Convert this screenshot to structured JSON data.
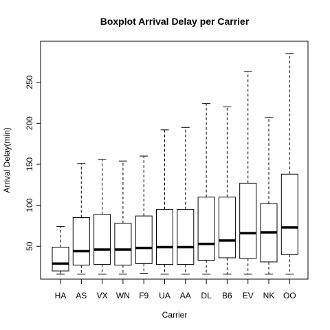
{
  "chart_data": {
    "type": "boxplot",
    "title": "Boxplot Arrival Delay per Carrier",
    "xlabel": "Carrier",
    "ylabel": "Arrival Delay(min)",
    "ylim": [
      10,
      300
    ],
    "yticks": [
      50,
      100,
      150,
      200,
      250
    ],
    "categories": [
      "HA",
      "AS",
      "VX",
      "WN",
      "F9",
      "UA",
      "AA",
      "DL",
      "B6",
      "EV",
      "NK",
      "OO"
    ],
    "boxes": [
      {
        "carrier": "HA",
        "min": 16,
        "q1": 20,
        "median": 29,
        "q3": 49,
        "max": 74
      },
      {
        "carrier": "AS",
        "min": 16,
        "q1": 27,
        "median": 44,
        "q3": 85,
        "max": 151
      },
      {
        "carrier": "VX",
        "min": 16,
        "q1": 28,
        "median": 46,
        "q3": 89,
        "max": 156
      },
      {
        "carrier": "WN",
        "min": 16,
        "q1": 27,
        "median": 46,
        "q3": 78,
        "max": 154
      },
      {
        "carrier": "F9",
        "min": 17,
        "q1": 29,
        "median": 48,
        "q3": 87,
        "max": 160
      },
      {
        "carrier": "UA",
        "min": 16,
        "q1": 28,
        "median": 49,
        "q3": 95,
        "max": 192
      },
      {
        "carrier": "AA",
        "min": 16,
        "q1": 28,
        "median": 49,
        "q3": 95,
        "max": 195
      },
      {
        "carrier": "DL",
        "min": 16,
        "q1": 33,
        "median": 53,
        "q3": 110,
        "max": 224
      },
      {
        "carrier": "B6",
        "min": 16,
        "q1": 36,
        "median": 57,
        "q3": 110,
        "max": 220
      },
      {
        "carrier": "EV",
        "min": 16,
        "q1": 35,
        "median": 66,
        "q3": 127,
        "max": 263
      },
      {
        "carrier": "NK",
        "min": 16,
        "q1": 31,
        "median": 67,
        "q3": 102,
        "max": 207
      },
      {
        "carrier": "OO",
        "min": 16,
        "q1": 40,
        "median": 73,
        "q3": 138,
        "max": 285
      }
    ],
    "colors": {
      "box_fill": "#ffffff",
      "stroke": "#000000",
      "background": "#ffffff"
    }
  }
}
